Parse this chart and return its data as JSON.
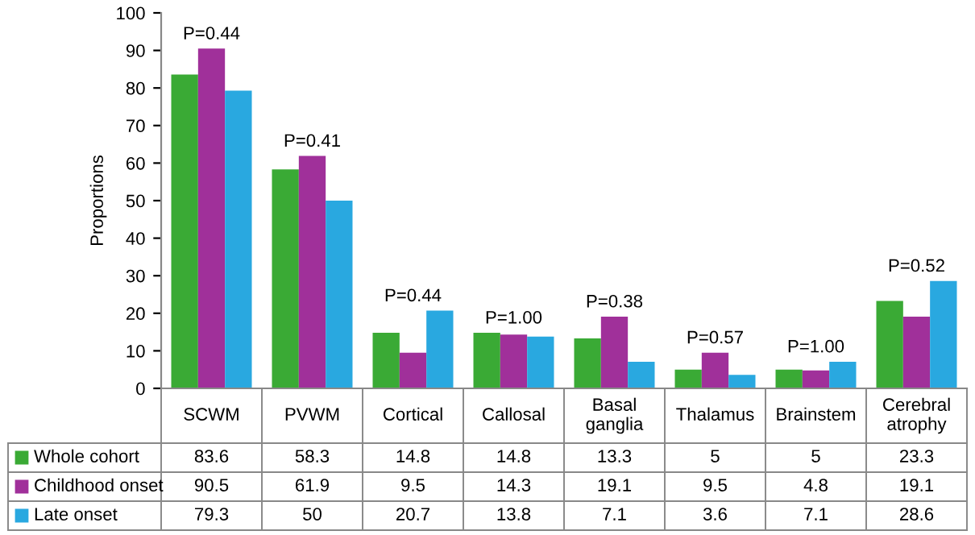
{
  "chart_data": {
    "type": "bar",
    "ylabel": "Proportions",
    "categories": [
      "SCWM",
      "PVWM",
      "Cortical",
      "Callosal",
      "Basal\nganglia",
      "Thalamus",
      "Brainstem",
      "Cerebral\natrophy"
    ],
    "series": [
      {
        "name": "Whole cohort",
        "color": "#3aaa35",
        "values": [
          83.6,
          58.3,
          14.8,
          14.8,
          13.3,
          5,
          5,
          23.3
        ]
      },
      {
        "name": "Childhood onset",
        "color": "#a0309a",
        "values": [
          90.5,
          61.9,
          9.5,
          14.3,
          19.1,
          9.5,
          4.8,
          19.1
        ]
      },
      {
        "name": "Late onset",
        "color": "#29a8e0",
        "values": [
          79.3,
          50,
          20.7,
          13.8,
          7.1,
          3.6,
          7.1,
          28.6
        ]
      }
    ],
    "ylim": [
      0,
      100
    ],
    "yticks": [
      0,
      10,
      20,
      30,
      40,
      50,
      60,
      70,
      80,
      90,
      100
    ],
    "data_labels": true,
    "legend": "bottom",
    "annotations": [
      "P=0.44",
      "P=0.41",
      "P=0.44",
      "P=1.00",
      "P=0.38",
      "P=0.57",
      "P=1.00",
      "P=0.52"
    ]
  }
}
